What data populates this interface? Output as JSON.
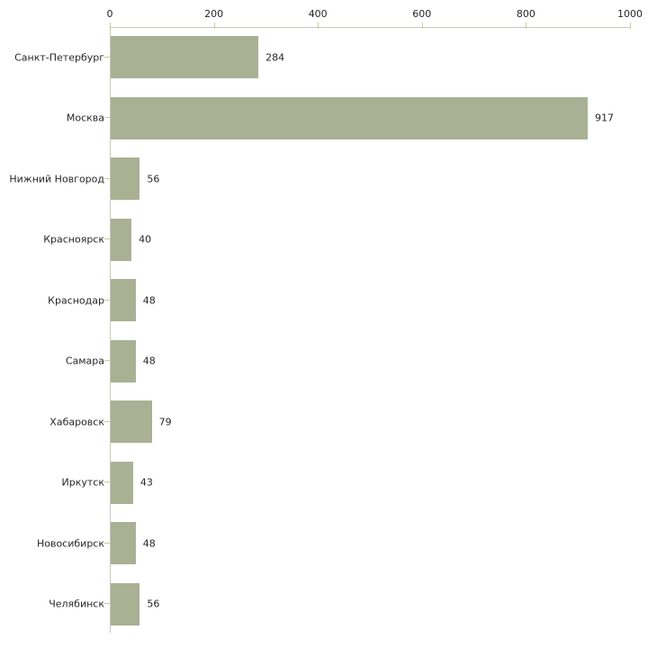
{
  "chart_data": {
    "type": "bar",
    "orientation": "horizontal",
    "title": "",
    "xlabel": "",
    "ylabel": "",
    "categories": [
      "Санкт-Петербург",
      "Москва",
      "Нижний Новгород",
      "Красноярск",
      "Краснодар",
      "Самара",
      "Хабаровск",
      "Иркутск",
      "Новосибирск",
      "Челябинск"
    ],
    "values": [
      284,
      917,
      56,
      40,
      48,
      48,
      79,
      43,
      48,
      56
    ],
    "value_labels": [
      "284",
      "917",
      "56",
      "40",
      "48",
      "48",
      "79",
      "43",
      "48",
      "56"
    ],
    "xlim": [
      0,
      1000
    ],
    "x_ticks": [
      0,
      200,
      400,
      600,
      800,
      1000
    ],
    "x_tick_labels": [
      "0",
      "200",
      "400",
      "600",
      "800",
      "1000"
    ],
    "axis_position": "top",
    "grid": false,
    "legend": false,
    "colors": {
      "bar": "#aab094",
      "tick": "#cccc99",
      "axis_line": "#c8c8c0",
      "text": "#262626",
      "background": "#ffffff"
    }
  }
}
